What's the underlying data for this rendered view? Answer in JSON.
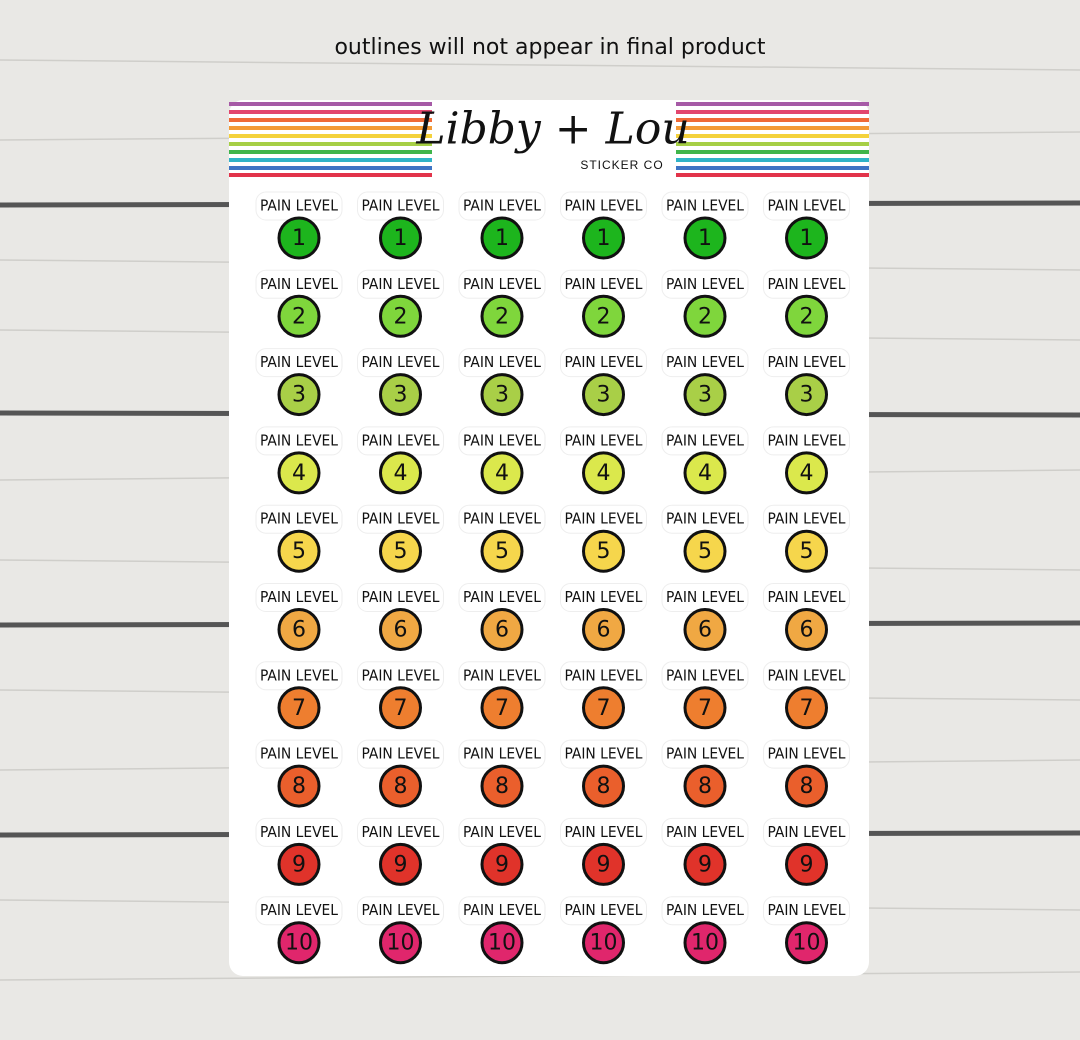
{
  "notice": "outlines will not appear in final product",
  "brand": {
    "name": "Libby + Lou",
    "subtitle": "STICKER CO"
  },
  "rows": [
    {
      "color": "#1db51d",
      "stickers": [
        {
          "label": "PAIN LEVEL",
          "number": 1
        },
        {
          "label": "PAIN LEVEL",
          "number": 1
        },
        {
          "label": "PAIN LEVEL",
          "number": 1
        },
        {
          "label": "PAIN LEVEL",
          "number": 1
        },
        {
          "label": "PAIN LEVEL",
          "number": 1
        },
        {
          "label": "PAIN LEVEL",
          "number": 1
        }
      ]
    },
    {
      "color": "#7fd63c",
      "stickers": [
        {
          "label": "PAIN LEVEL",
          "number": 2
        },
        {
          "label": "PAIN LEVEL",
          "number": 2
        },
        {
          "label": "PAIN LEVEL",
          "number": 2
        },
        {
          "label": "PAIN LEVEL",
          "number": 2
        },
        {
          "label": "PAIN LEVEL",
          "number": 2
        },
        {
          "label": "PAIN LEVEL",
          "number": 2
        }
      ]
    },
    {
      "color": "#a9cf47",
      "stickers": [
        {
          "label": "PAIN LEVEL",
          "number": 3
        },
        {
          "label": "PAIN LEVEL",
          "number": 3
        },
        {
          "label": "PAIN LEVEL",
          "number": 3
        },
        {
          "label": "PAIN LEVEL",
          "number": 3
        },
        {
          "label": "PAIN LEVEL",
          "number": 3
        },
        {
          "label": "PAIN LEVEL",
          "number": 3
        }
      ]
    },
    {
      "color": "#dbe84c",
      "stickers": [
        {
          "label": "PAIN LEVEL",
          "number": 4
        },
        {
          "label": "PAIN LEVEL",
          "number": 4
        },
        {
          "label": "PAIN LEVEL",
          "number": 4
        },
        {
          "label": "PAIN LEVEL",
          "number": 4
        },
        {
          "label": "PAIN LEVEL",
          "number": 4
        },
        {
          "label": "PAIN LEVEL",
          "number": 4
        }
      ]
    },
    {
      "color": "#f6d64c",
      "stickers": [
        {
          "label": "PAIN LEVEL",
          "number": 5
        },
        {
          "label": "PAIN LEVEL",
          "number": 5
        },
        {
          "label": "PAIN LEVEL",
          "number": 5
        },
        {
          "label": "PAIN LEVEL",
          "number": 5
        },
        {
          "label": "PAIN LEVEL",
          "number": 5
        },
        {
          "label": "PAIN LEVEL",
          "number": 5
        }
      ]
    },
    {
      "color": "#f0a843",
      "stickers": [
        {
          "label": "PAIN LEVEL",
          "number": 6
        },
        {
          "label": "PAIN LEVEL",
          "number": 6
        },
        {
          "label": "PAIN LEVEL",
          "number": 6
        },
        {
          "label": "PAIN LEVEL",
          "number": 6
        },
        {
          "label": "PAIN LEVEL",
          "number": 6
        },
        {
          "label": "PAIN LEVEL",
          "number": 6
        }
      ]
    },
    {
      "color": "#ee7e2f",
      "stickers": [
        {
          "label": "PAIN LEVEL",
          "number": 7
        },
        {
          "label": "PAIN LEVEL",
          "number": 7
        },
        {
          "label": "PAIN LEVEL",
          "number": 7
        },
        {
          "label": "PAIN LEVEL",
          "number": 7
        },
        {
          "label": "PAIN LEVEL",
          "number": 7
        },
        {
          "label": "PAIN LEVEL",
          "number": 7
        }
      ]
    },
    {
      "color": "#ea5f2c",
      "stickers": [
        {
          "label": "PAIN LEVEL",
          "number": 8
        },
        {
          "label": "PAIN LEVEL",
          "number": 8
        },
        {
          "label": "PAIN LEVEL",
          "number": 8
        },
        {
          "label": "PAIN LEVEL",
          "number": 8
        },
        {
          "label": "PAIN LEVEL",
          "number": 8
        },
        {
          "label": "PAIN LEVEL",
          "number": 8
        }
      ]
    },
    {
      "color": "#e0332a",
      "stickers": [
        {
          "label": "PAIN LEVEL",
          "number": 9
        },
        {
          "label": "PAIN LEVEL",
          "number": 9
        },
        {
          "label": "PAIN LEVEL",
          "number": 9
        },
        {
          "label": "PAIN LEVEL",
          "number": 9
        },
        {
          "label": "PAIN LEVEL",
          "number": 9
        },
        {
          "label": "PAIN LEVEL",
          "number": 9
        }
      ]
    },
    {
      "color": "#e0266c",
      "stickers": [
        {
          "label": "PAIN LEVEL",
          "number": 10
        },
        {
          "label": "PAIN LEVEL",
          "number": 10
        },
        {
          "label": "PAIN LEVEL",
          "number": 10
        },
        {
          "label": "PAIN LEVEL",
          "number": 10
        },
        {
          "label": "PAIN LEVEL",
          "number": 10
        },
        {
          "label": "PAIN LEVEL",
          "number": 10
        }
      ]
    }
  ]
}
